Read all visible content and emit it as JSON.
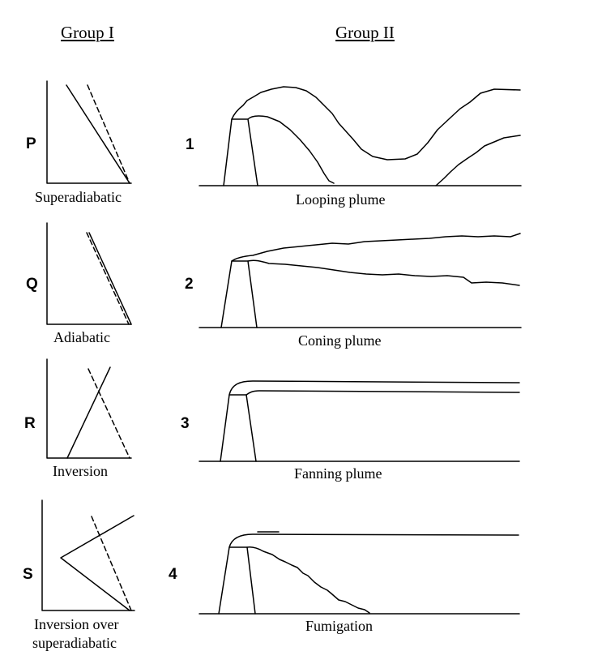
{
  "headers": {
    "group1": "Group I",
    "group2": "Group II"
  },
  "group1": [
    {
      "letter": "P",
      "caption": "Superadiabatic"
    },
    {
      "letter": "Q",
      "caption": "Adiabatic"
    },
    {
      "letter": "R",
      "caption": "Inversion"
    },
    {
      "letter": "S",
      "caption_line1": "Inversion over",
      "caption_line2": "superadiabatic"
    }
  ],
  "group2": [
    {
      "number": "1",
      "caption": "Looping plume"
    },
    {
      "number": "2",
      "caption": "Coning plume"
    },
    {
      "number": "3",
      "caption": "Fanning plume"
    },
    {
      "number": "4",
      "caption": "Fumigation"
    }
  ]
}
